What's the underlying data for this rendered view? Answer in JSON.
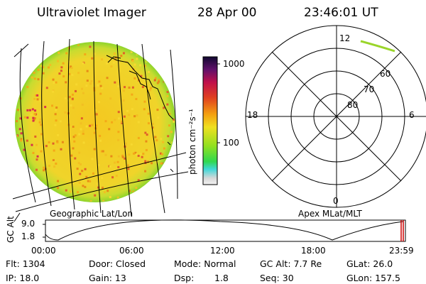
{
  "header": {
    "title": "Ultraviolet Imager",
    "date": "28 Apr 00",
    "time": "23:46:01 UT"
  },
  "colorbar": {
    "label": "photon cm⁻²s⁻¹",
    "ticks": [
      "1000",
      "100"
    ]
  },
  "geo_panel": {
    "label": "Geographic Lat/Lon"
  },
  "polar_panel": {
    "label": "Apex MLat/MLT",
    "mlt_labels": {
      "top": "12",
      "left": "18",
      "right": "6",
      "bottom": "0"
    },
    "lat_labels": [
      "60",
      "70",
      "80"
    ]
  },
  "altitude_plot": {
    "ylabel": "GC Alt",
    "yticks": [
      "9.0",
      "1.8"
    ],
    "xticks": [
      "00:00",
      "06:00",
      "12:00",
      "18:00",
      "23:59"
    ]
  },
  "info": {
    "flt": "Flt: 1304",
    "ip": "IP: 18.0",
    "door": "Door: Closed",
    "gain": "Gain: 13",
    "mode": "Mode: Normal",
    "dsp_label": "Dsp:",
    "dsp_value": "1.8",
    "gcalt": "GC Alt: 7.7 Re",
    "seq": "Seq: 30",
    "glat": "GLat:  26.0",
    "glon": "GLon: 157.5"
  },
  "colors": {
    "disk_base": "#f2cc22",
    "disk_edge": "#9ad52a",
    "hot": "#d8304a",
    "orbit_marker": "#cc0000"
  }
}
